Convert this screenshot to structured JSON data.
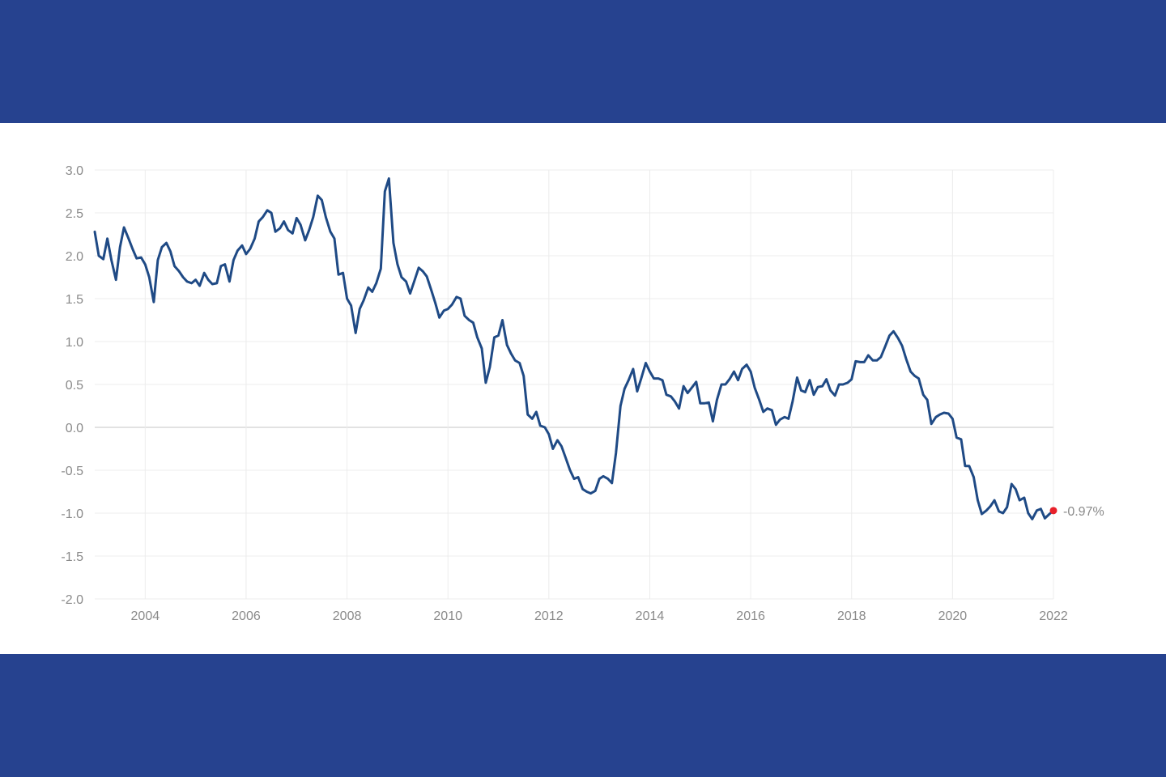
{
  "colors": {
    "band": "#26428f",
    "line": "#1f4a85",
    "grid": "#ececec",
    "zero_line": "#d9d9d9",
    "end_marker": "#e8202a"
  },
  "chart_data": {
    "type": "line",
    "title": "",
    "xlabel": "",
    "ylabel": "",
    "xlim": [
      2003.0,
      2022.0
    ],
    "ylim": [
      -2.0,
      3.0
    ],
    "grid": true,
    "legend": "none",
    "y_ticks": [
      "3.0",
      "2.5",
      "2.0",
      "1.5",
      "1.0",
      "0.5",
      "0.0",
      "-0.5",
      "-1.0",
      "-1.5",
      "-2.0"
    ],
    "x_ticks": [
      "2004",
      "2006",
      "2008",
      "2010",
      "2012",
      "2014",
      "2016",
      "2018",
      "2020",
      "2022"
    ],
    "end_label": "-0.97%",
    "series": [
      {
        "x": [
          2003.0,
          2003.08,
          2003.17,
          2003.25,
          2003.33,
          2003.42,
          2003.5,
          2003.58,
          2003.67,
          2003.75,
          2003.83,
          2003.92,
          2004.0,
          2004.08,
          2004.17,
          2004.25,
          2004.33,
          2004.42,
          2004.5,
          2004.58,
          2004.67,
          2004.75,
          2004.83,
          2004.92,
          2005.0,
          2005.08,
          2005.17,
          2005.25,
          2005.33,
          2005.42,
          2005.5,
          2005.58,
          2005.67,
          2005.75,
          2005.83,
          2005.92,
          2006.0,
          2006.08,
          2006.17,
          2006.25,
          2006.33,
          2006.42,
          2006.5,
          2006.58,
          2006.67,
          2006.75,
          2006.83,
          2006.92,
          2007.0,
          2007.08,
          2007.17,
          2007.25,
          2007.33,
          2007.42,
          2007.5,
          2007.58,
          2007.67,
          2007.75,
          2007.83,
          2007.92,
          2008.0,
          2008.08,
          2008.17,
          2008.25,
          2008.33,
          2008.42,
          2008.5,
          2008.58,
          2008.67,
          2008.75,
          2008.83,
          2008.92,
          2009.0,
          2009.08,
          2009.17,
          2009.25,
          2009.33,
          2009.42,
          2009.5,
          2009.58,
          2009.67,
          2009.75,
          2009.83,
          2009.92,
          2010.0,
          2010.08,
          2010.17,
          2010.25,
          2010.33,
          2010.42,
          2010.5,
          2010.58,
          2010.67,
          2010.75,
          2010.83,
          2010.92,
          2011.0,
          2011.08,
          2011.17,
          2011.25,
          2011.33,
          2011.42,
          2011.5,
          2011.58,
          2011.67,
          2011.75,
          2011.83,
          2011.92,
          2012.0,
          2012.08,
          2012.17,
          2012.25,
          2012.33,
          2012.42,
          2012.5,
          2012.58,
          2012.67,
          2012.75,
          2012.83,
          2012.92,
          2013.0,
          2013.08,
          2013.17,
          2013.25,
          2013.33,
          2013.42,
          2013.5,
          2013.58,
          2013.67,
          2013.75,
          2013.83,
          2013.92,
          2014.0,
          2014.08,
          2014.17,
          2014.25,
          2014.33,
          2014.42,
          2014.5,
          2014.58,
          2014.67,
          2014.75,
          2014.83,
          2014.92,
          2015.0,
          2015.08,
          2015.17,
          2015.25,
          2015.33,
          2015.42,
          2015.5,
          2015.58,
          2015.67,
          2015.75,
          2015.83,
          2015.92,
          2016.0,
          2016.08,
          2016.17,
          2016.25,
          2016.33,
          2016.42,
          2016.5,
          2016.58,
          2016.67,
          2016.75,
          2016.83,
          2016.92,
          2017.0,
          2017.08,
          2017.17,
          2017.25,
          2017.33,
          2017.42,
          2017.5,
          2017.58,
          2017.67,
          2017.75,
          2017.83,
          2017.92,
          2018.0,
          2018.08,
          2018.17,
          2018.25,
          2018.33,
          2018.42,
          2018.5,
          2018.58,
          2018.67,
          2018.75,
          2018.83,
          2018.92,
          2019.0,
          2019.08,
          2019.17,
          2019.25,
          2019.33,
          2019.42,
          2019.5,
          2019.58,
          2019.67,
          2019.75,
          2019.83,
          2019.92,
          2020.0,
          2020.08,
          2020.17,
          2020.25,
          2020.33,
          2020.42,
          2020.5,
          2020.58,
          2020.67,
          2020.75,
          2020.83,
          2020.92,
          2021.0,
          2021.08,
          2021.17,
          2021.25,
          2021.33,
          2021.42,
          2021.5,
          2021.58,
          2021.67,
          2021.75,
          2021.83,
          2021.92,
          2022.0
        ],
        "y": [
          2.28,
          2.0,
          1.96,
          2.2,
          1.95,
          1.72,
          2.1,
          2.33,
          2.2,
          2.08,
          1.97,
          1.98,
          1.9,
          1.75,
          1.46,
          1.95,
          2.1,
          2.15,
          2.05,
          1.88,
          1.82,
          1.75,
          1.7,
          1.68,
          1.72,
          1.65,
          1.8,
          1.72,
          1.67,
          1.68,
          1.88,
          1.9,
          1.7,
          1.95,
          2.06,
          2.12,
          2.02,
          2.08,
          2.2,
          2.4,
          2.45,
          2.53,
          2.5,
          2.28,
          2.32,
          2.4,
          2.3,
          2.26,
          2.44,
          2.36,
          2.18,
          2.3,
          2.45,
          2.7,
          2.65,
          2.45,
          2.28,
          2.2,
          1.78,
          1.8,
          1.5,
          1.42,
          1.1,
          1.38,
          1.48,
          1.63,
          1.58,
          1.68,
          1.85,
          2.75,
          2.9,
          2.15,
          1.9,
          1.75,
          1.7,
          1.56,
          1.7,
          1.86,
          1.82,
          1.76,
          1.6,
          1.45,
          1.28,
          1.36,
          1.38,
          1.43,
          1.52,
          1.5,
          1.3,
          1.25,
          1.22,
          1.05,
          0.92,
          0.52,
          0.7,
          1.05,
          1.07,
          1.25,
          0.96,
          0.86,
          0.78,
          0.75,
          0.6,
          0.15,
          0.1,
          0.18,
          0.02,
          0.0,
          -0.08,
          -0.25,
          -0.15,
          -0.22,
          -0.35,
          -0.5,
          -0.6,
          -0.58,
          -0.72,
          -0.75,
          -0.77,
          -0.74,
          -0.6,
          -0.57,
          -0.6,
          -0.65,
          -0.3,
          0.25,
          0.45,
          0.55,
          0.68,
          0.42,
          0.57,
          0.75,
          0.65,
          0.57,
          0.57,
          0.55,
          0.38,
          0.36,
          0.3,
          0.22,
          0.48,
          0.4,
          0.46,
          0.53,
          0.28,
          0.28,
          0.29,
          0.07,
          0.32,
          0.5,
          0.5,
          0.56,
          0.65,
          0.55,
          0.68,
          0.73,
          0.65,
          0.46,
          0.32,
          0.18,
          0.22,
          0.2,
          0.03,
          0.09,
          0.12,
          0.1,
          0.3,
          0.58,
          0.43,
          0.41,
          0.55,
          0.38,
          0.47,
          0.48,
          0.56,
          0.43,
          0.37,
          0.5,
          0.5,
          0.52,
          0.56,
          0.77,
          0.76,
          0.76,
          0.84,
          0.78,
          0.78,
          0.82,
          0.95,
          1.07,
          1.12,
          1.04,
          0.95,
          0.8,
          0.65,
          0.6,
          0.57,
          0.38,
          0.32,
          0.04,
          0.12,
          0.15,
          0.17,
          0.16,
          0.1,
          -0.12,
          -0.14,
          -0.45,
          -0.45,
          -0.58,
          -0.85,
          -1.01,
          -0.97,
          -0.92,
          -0.85,
          -0.98,
          -1.0,
          -0.93,
          -0.66,
          -0.72,
          -0.85,
          -0.82,
          -1.0,
          -1.07,
          -0.97,
          -0.95,
          -1.06,
          -1.01,
          -0.97
        ]
      }
    ]
  }
}
